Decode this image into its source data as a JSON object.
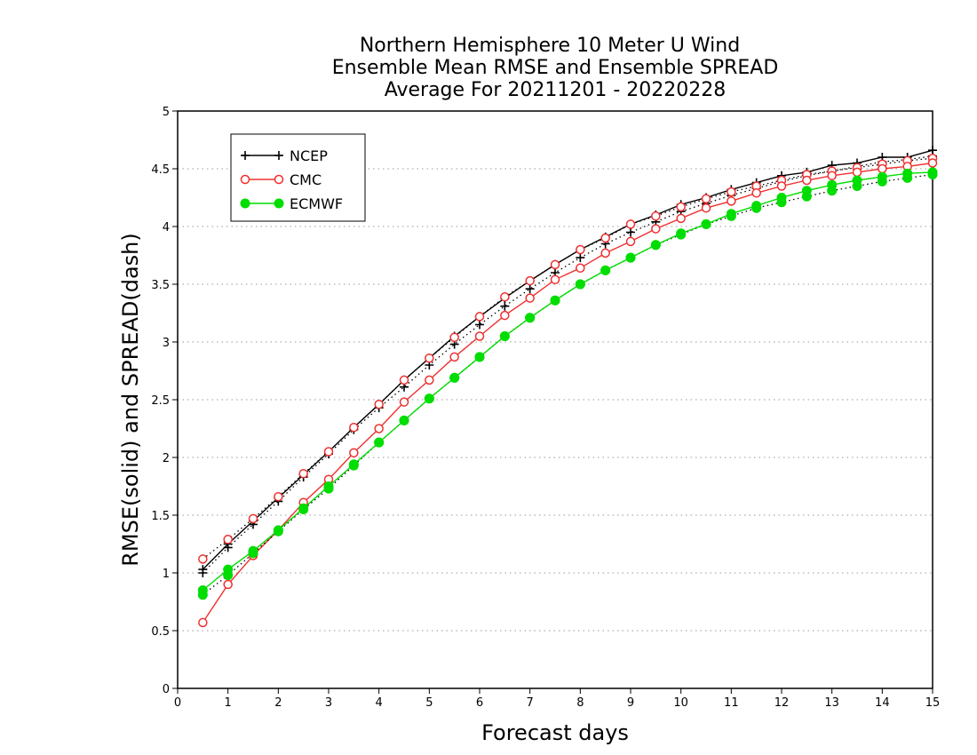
{
  "chart_data": {
    "type": "line",
    "title": [
      "Northern Hemisphere 10 Meter U Wind",
      "Ensemble Mean RMSE and Ensemble SPREAD",
      "Average For 20211201 - 20220228"
    ],
    "xlabel": "Forecast days",
    "ylabel": "RMSE(solid) and SPREAD(dash)",
    "xlim": [
      0,
      15
    ],
    "ylim": [
      0,
      5
    ],
    "xticks": [
      0,
      1,
      2,
      3,
      4,
      5,
      6,
      7,
      8,
      9,
      10,
      11,
      12,
      13,
      14,
      15
    ],
    "yticks": [
      0,
      0.5,
      1,
      1.5,
      2,
      2.5,
      3,
      3.5,
      4,
      4.5,
      5
    ],
    "ytick_labels": [
      "0",
      "0.5",
      "1",
      "1.5",
      "2",
      "2.5",
      "3",
      "3.5",
      "4",
      "4.5",
      "5"
    ],
    "grid": "horizontal-dotted",
    "legend": "top-left",
    "x": [
      0.5,
      1,
      1.5,
      2,
      2.5,
      3,
      3.5,
      4,
      4.5,
      5,
      5.5,
      6,
      6.5,
      7,
      7.5,
      8,
      8.5,
      9,
      9.5,
      10,
      10.5,
      11,
      11.5,
      12,
      12.5,
      13,
      13.5,
      14,
      14.5,
      15
    ],
    "series": [
      {
        "name": "NCEP",
        "color": "#000000",
        "marker": "plus",
        "rmse": [
          1.03,
          1.25,
          1.45,
          1.65,
          1.85,
          2.05,
          2.26,
          2.46,
          2.67,
          2.86,
          3.05,
          3.22,
          3.38,
          3.53,
          3.67,
          3.8,
          3.91,
          4.02,
          4.1,
          4.19,
          4.25,
          4.32,
          4.38,
          4.44,
          4.47,
          4.53,
          4.55,
          4.6,
          4.6,
          4.66
        ],
        "spread": [
          1.0,
          1.22,
          1.42,
          1.62,
          1.83,
          2.03,
          2.24,
          2.43,
          2.61,
          2.8,
          2.98,
          3.15,
          3.31,
          3.46,
          3.6,
          3.73,
          3.85,
          3.95,
          4.04,
          4.13,
          4.2,
          4.27,
          4.33,
          4.39,
          4.44,
          4.48,
          4.52,
          4.56,
          4.58,
          4.61
        ]
      },
      {
        "name": "CMC",
        "color": "#f03030",
        "marker": "open-circle",
        "rmse": [
          0.57,
          0.9,
          1.15,
          1.37,
          1.61,
          1.81,
          2.04,
          2.25,
          2.48,
          2.67,
          2.87,
          3.05,
          3.23,
          3.38,
          3.54,
          3.64,
          3.77,
          3.87,
          3.98,
          4.07,
          4.16,
          4.22,
          4.29,
          4.35,
          4.4,
          4.44,
          4.47,
          4.5,
          4.52,
          4.55
        ],
        "spread": [
          1.12,
          1.29,
          1.47,
          1.66,
          1.86,
          2.05,
          2.26,
          2.46,
          2.67,
          2.86,
          3.04,
          3.22,
          3.39,
          3.53,
          3.67,
          3.8,
          3.9,
          4.02,
          4.09,
          4.17,
          4.24,
          4.3,
          4.35,
          4.4,
          4.45,
          4.48,
          4.51,
          4.54,
          4.57,
          4.59
        ]
      },
      {
        "name": "ECMWF",
        "color": "#00dd00",
        "marker": "filled-circle",
        "rmse": [
          0.85,
          1.03,
          1.19,
          1.37,
          1.56,
          1.75,
          1.94,
          2.13,
          2.32,
          2.51,
          2.69,
          2.87,
          3.05,
          3.21,
          3.36,
          3.5,
          3.62,
          3.73,
          3.84,
          3.94,
          4.02,
          4.11,
          4.18,
          4.25,
          4.31,
          4.36,
          4.4,
          4.43,
          4.46,
          4.47
        ],
        "spread": [
          0.81,
          0.98,
          1.17,
          1.36,
          1.55,
          1.73,
          1.93,
          2.13,
          2.32,
          2.51,
          2.69,
          2.87,
          3.05,
          3.21,
          3.36,
          3.5,
          3.62,
          3.73,
          3.84,
          3.93,
          4.02,
          4.09,
          4.16,
          4.21,
          4.26,
          4.31,
          4.35,
          4.39,
          4.42,
          4.45
        ]
      }
    ]
  }
}
